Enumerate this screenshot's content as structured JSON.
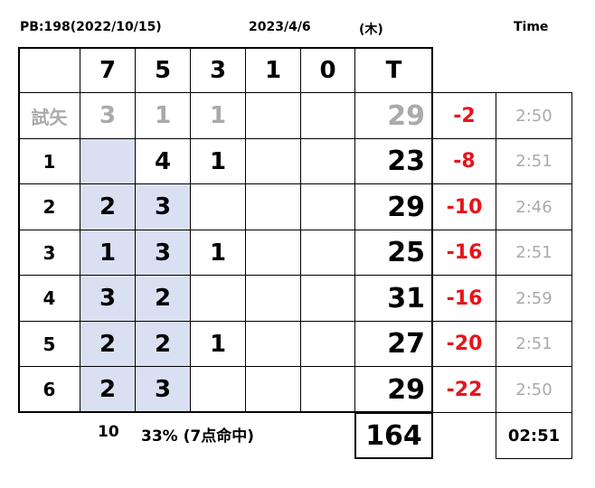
{
  "header": {
    "pb": "PB:198(2022/10/15)",
    "date": "2023/4/6",
    "weekday": "(木)",
    "time_label": "Time"
  },
  "table": {
    "columns": [
      null,
      "7",
      "5",
      "3",
      "1",
      "0",
      "T"
    ],
    "rows": [
      [
        "試矢",
        "3",
        "1",
        "1",
        null,
        null,
        "29",
        "-2",
        "2:50"
      ],
      [
        "1",
        null,
        "4",
        "1",
        null,
        null,
        "23",
        "-8",
        "2:51"
      ],
      [
        "2",
        "2",
        "3",
        null,
        null,
        null,
        "29",
        "-10",
        "2:46"
      ],
      [
        "3",
        "1",
        "3",
        "1",
        null,
        null,
        "25",
        "-16",
        "2:51"
      ],
      [
        "4",
        "3",
        "2",
        null,
        null,
        null,
        "31",
        "-16",
        "2:59"
      ],
      [
        "5",
        "2",
        "2",
        "1",
        null,
        null,
        "27",
        "-20",
        "2:51"
      ],
      [
        "6",
        "2",
        "3",
        null,
        null,
        null,
        "29",
        "-22",
        "2:50"
      ]
    ]
  },
  "footer": {
    "count": "10",
    "rate": "33% (7点命中)",
    "total": "164",
    "time": "02:51"
  }
}
